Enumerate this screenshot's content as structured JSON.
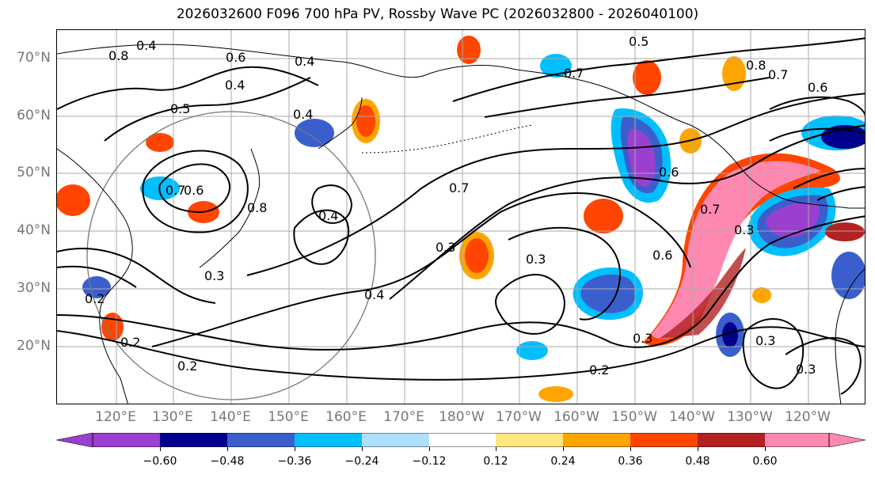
{
  "title": "2026032600 F096 700 hPa PV, Rossby Wave PC (2026032800 - 2026040100)",
  "lat_labels": [
    "70°N",
    "60°N",
    "50°N",
    "40°N",
    "30°N",
    "20°N"
  ],
  "lon_labels": [
    "120°E",
    "130°E",
    "140°E",
    "150°E",
    "160°E",
    "170°E",
    "180°W",
    "170°W",
    "160°W",
    "150°W",
    "140°W",
    "130°W",
    "120°W"
  ],
  "contour_labels": [
    "0.8",
    "0.4",
    "0.6",
    "0.4",
    "0.5",
    "0.4",
    "0.4",
    "0.5",
    "0.7",
    "0.8",
    "0.7",
    "0.6",
    "0.7",
    "0.6",
    "0.8",
    "0.4",
    "0.7",
    "0.3",
    "0.3",
    "0.7",
    "0.6",
    "0.3",
    "0.4",
    "0.3",
    "0.2",
    "0.3",
    "0.2",
    "0.3",
    "0.3",
    "0.2",
    "0.6",
    "0.2"
  ],
  "colorbar": {
    "ticks": [
      "−0.60",
      "−0.48",
      "−0.36",
      "−0.24",
      "−0.12",
      "0.12",
      "0.24",
      "0.36",
      "0.48",
      "0.60"
    ],
    "colors": [
      "#9a3fd0",
      "#00008b",
      "#3a5fcd",
      "#00bfff",
      "#b0e0ff",
      "#ffffff",
      "#ffe680",
      "#ffa500",
      "#ff4500",
      "#b22222",
      "#ff88b0"
    ]
  },
  "shading_colors": {
    "violet": "#9a3fd0",
    "navy": "#00008b",
    "blue": "#3a5fcd",
    "sky": "#00bfff",
    "lightblue": "#b0e0ff",
    "yellow": "#ffe680",
    "orange": "#ffa500",
    "red": "#ff4500",
    "darkred": "#b22222",
    "pink": "#ff88b0"
  }
}
